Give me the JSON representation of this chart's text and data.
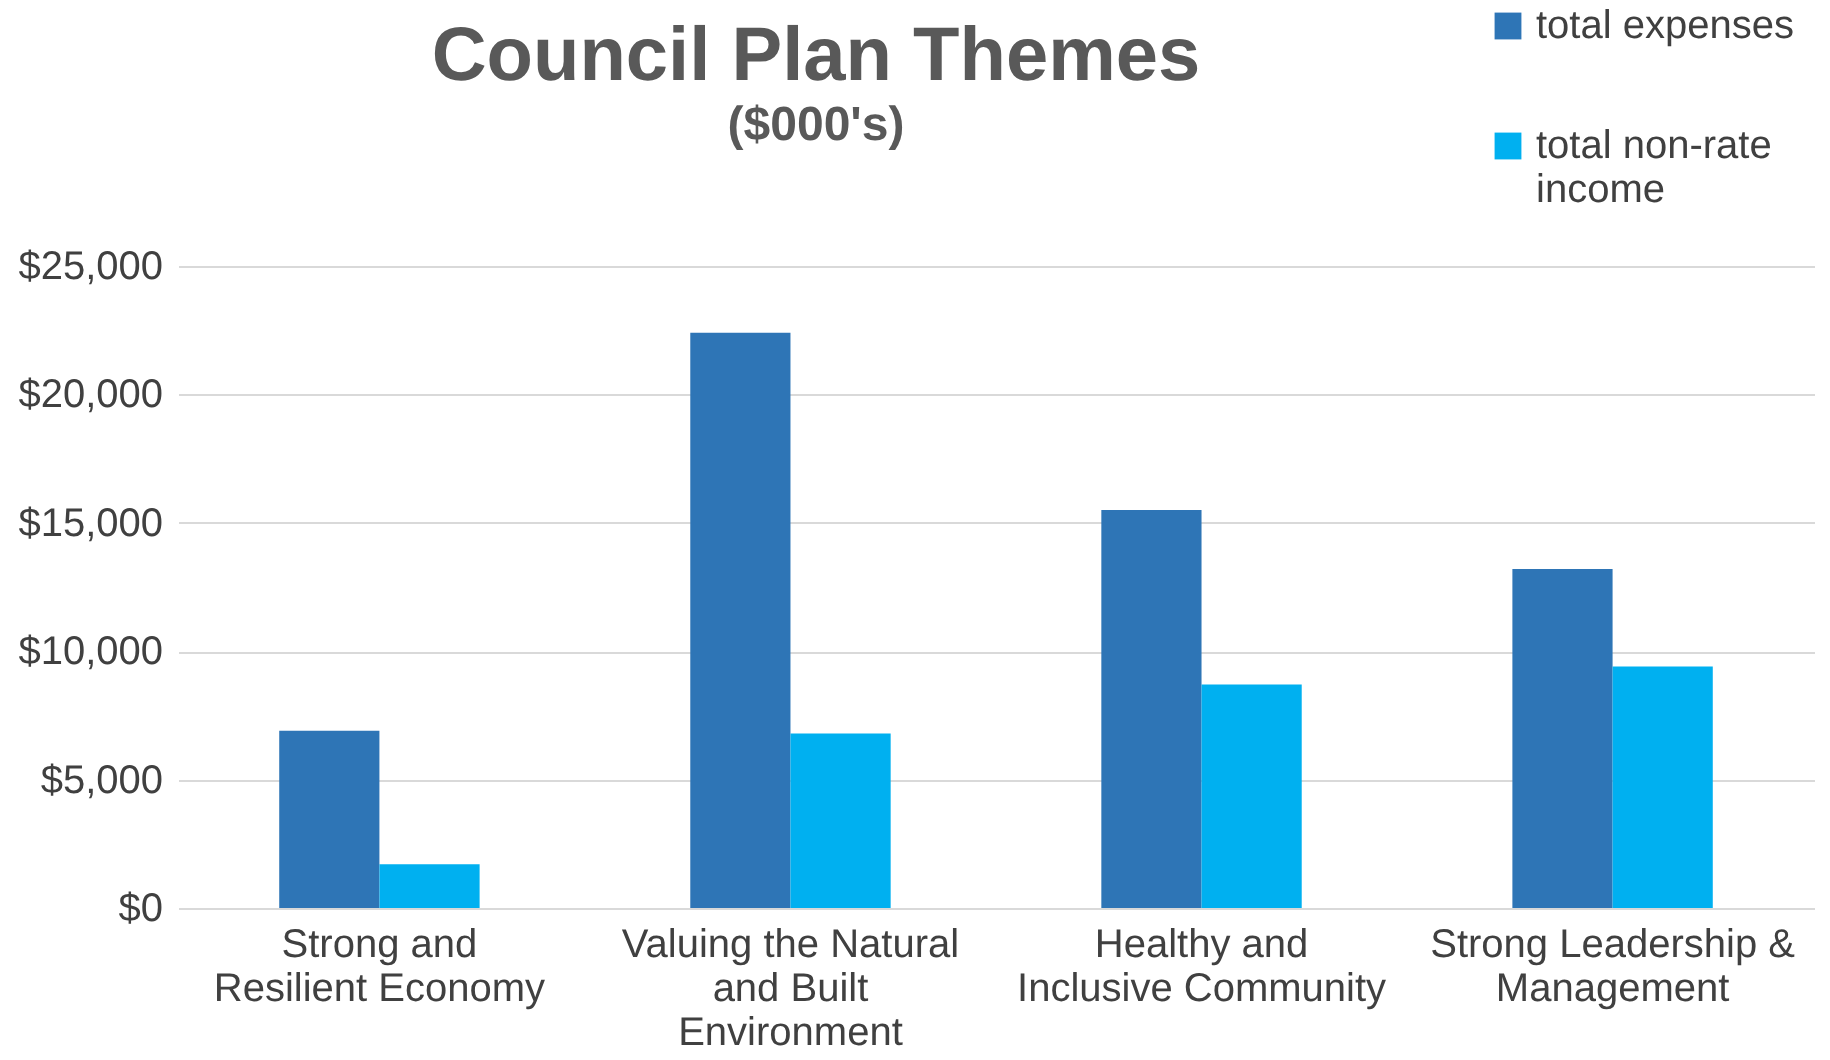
{
  "chart_data": {
    "type": "bar",
    "title": "Council Plan Themes",
    "subtitle": "($000's)",
    "categories": [
      "Strong and Resilient Economy",
      "Valuing the Natural and Built Environment",
      "Healthy and Inclusive Community",
      "Strong Leadership & Management"
    ],
    "series": [
      {
        "name": "total expenses",
        "color": "#2e75b6",
        "values": [
          6900,
          22400,
          15500,
          13200
        ]
      },
      {
        "name": "total non-rate income",
        "color": "#00b0f0",
        "values": [
          1700,
          6800,
          8700,
          9400
        ]
      }
    ],
    "ylim": [
      0,
      25000
    ],
    "yticks": [
      {
        "value": 0,
        "label": "$0"
      },
      {
        "value": 5000,
        "label": "$5,000"
      },
      {
        "value": 10000,
        "label": "$10,000"
      },
      {
        "value": 15000,
        "label": "$15,000"
      },
      {
        "value": 20000,
        "label": "$20,000"
      },
      {
        "value": 25000,
        "label": "$25,000"
      }
    ],
    "grid": "y",
    "legend": "top right"
  }
}
